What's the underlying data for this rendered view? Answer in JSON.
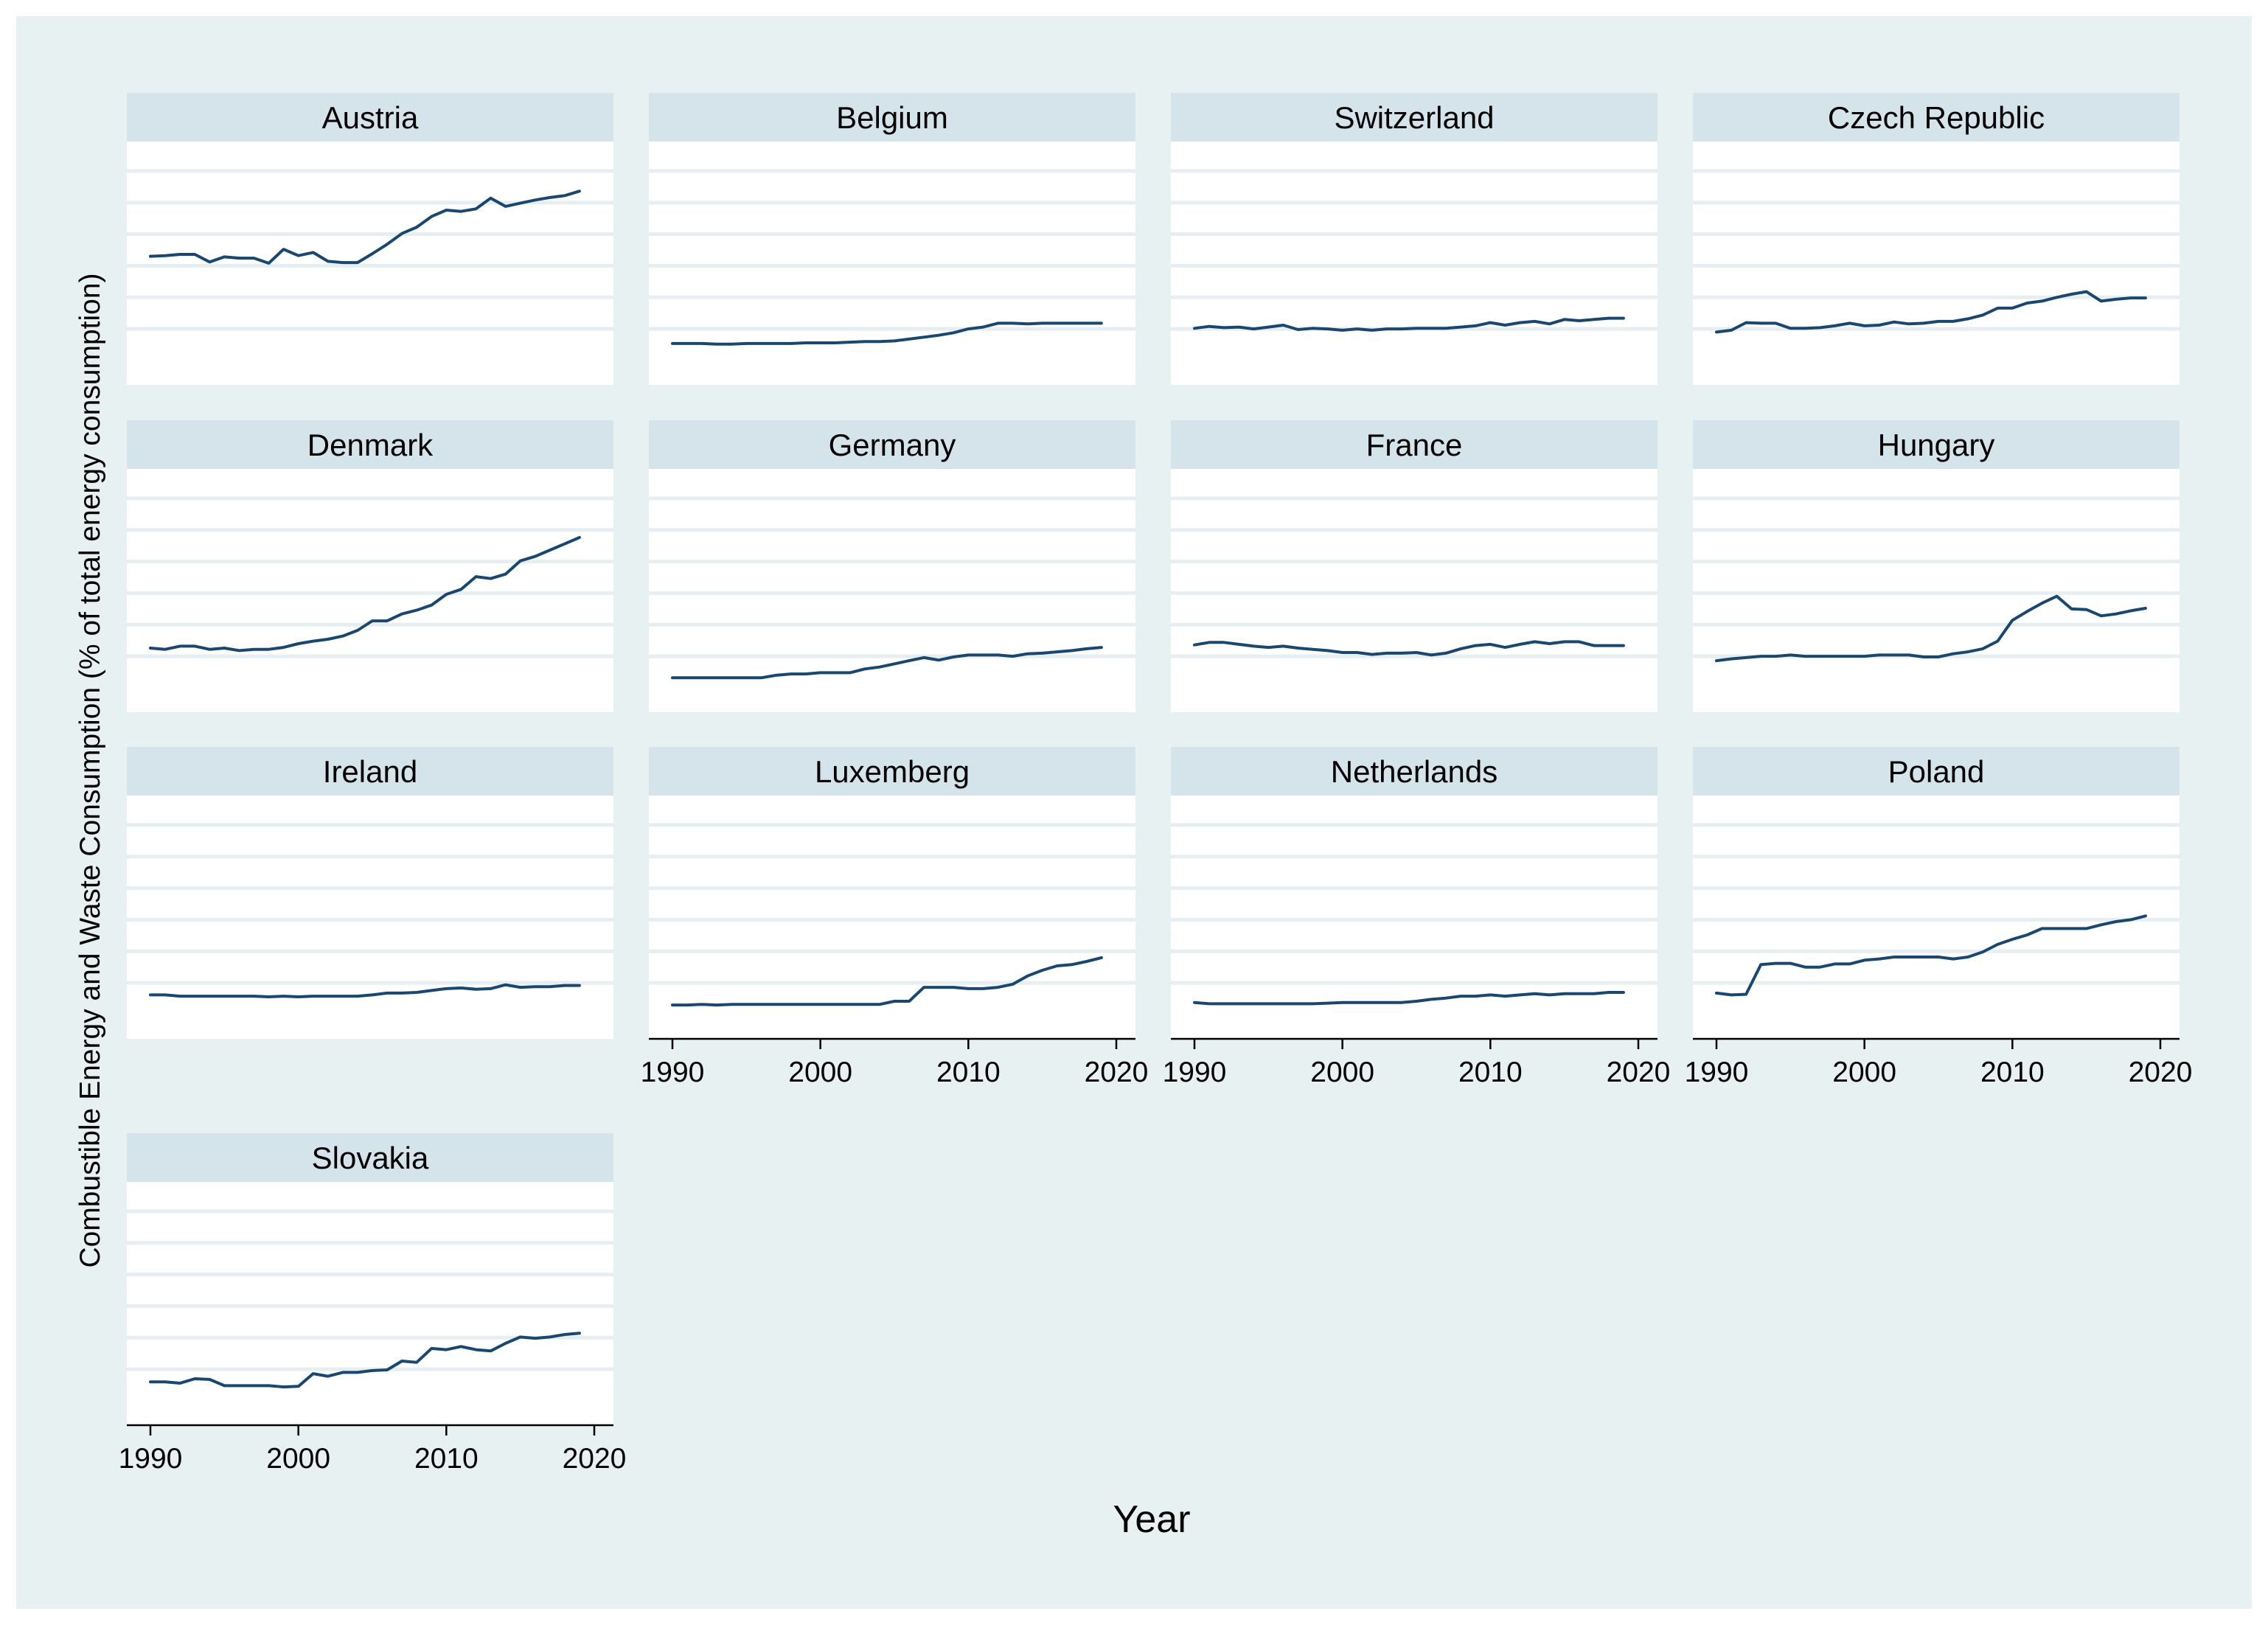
{
  "chart_data": {
    "type": "line",
    "layout": "small-multiples",
    "title": "",
    "xlabel": "Year",
    "ylabel": "Combustible Energy and Waste Consumption (% of total energy consumption)",
    "xlim": [
      1990,
      2020
    ],
    "ylim": [
      0,
      35
    ],
    "x_ticks": [
      1990,
      2000,
      2010,
      2020
    ],
    "x_tick_labels": [
      "1990",
      "2000",
      "2010",
      "2020"
    ],
    "y_gridlines": [
      5,
      10,
      15,
      20,
      25,
      30
    ],
    "y_tick_labels_shown": false,
    "grid": true,
    "x": [
      1990,
      1991,
      1992,
      1993,
      1994,
      1995,
      1996,
      1997,
      1998,
      1999,
      2000,
      2001,
      2002,
      2003,
      2004,
      2005,
      2006,
      2007,
      2008,
      2009,
      2010,
      2011,
      2012,
      2013,
      2014,
      2015,
      2016,
      2017,
      2018,
      2019
    ],
    "series": [
      {
        "name": "Austria",
        "values": [
          16.5,
          16.6,
          16.8,
          16.8,
          15.6,
          16.4,
          16.2,
          16.2,
          15.4,
          17.6,
          16.6,
          17.1,
          15.7,
          15.5,
          15.5,
          16.9,
          18.4,
          20.1,
          21.1,
          22.8,
          23.8,
          23.6,
          24.0,
          25.7,
          24.4,
          24.9,
          25.4,
          25.8,
          26.1,
          26.8
        ]
      },
      {
        "name": "Belgium",
        "values": [
          2.7,
          2.7,
          2.7,
          2.6,
          2.6,
          2.7,
          2.7,
          2.7,
          2.7,
          2.8,
          2.8,
          2.8,
          2.9,
          3.0,
          3.0,
          3.1,
          3.4,
          3.7,
          4.0,
          4.4,
          5.0,
          5.3,
          5.9,
          5.9,
          5.8,
          5.9,
          5.9,
          5.9,
          5.9,
          5.9
        ]
      },
      {
        "name": "Switzerland",
        "values": [
          5.1,
          5.4,
          5.2,
          5.3,
          5.0,
          5.3,
          5.6,
          4.9,
          5.1,
          5.0,
          4.8,
          5.0,
          4.8,
          5.0,
          5.0,
          5.1,
          5.1,
          5.1,
          5.3,
          5.5,
          6.0,
          5.6,
          6.0,
          6.2,
          5.8,
          6.5,
          6.3,
          6.5,
          6.7,
          6.7
        ]
      },
      {
        "name": "Czech Republic",
        "values": [
          4.5,
          4.8,
          6.0,
          5.9,
          5.9,
          5.1,
          5.1,
          5.2,
          5.5,
          5.9,
          5.5,
          5.6,
          6.1,
          5.8,
          5.9,
          6.2,
          6.2,
          6.6,
          7.2,
          8.3,
          8.3,
          9.1,
          9.4,
          10.0,
          10.5,
          10.9,
          9.4,
          9.7,
          9.9,
          9.9
        ]
      },
      {
        "name": "Denmark",
        "values": [
          6.3,
          6.1,
          6.6,
          6.6,
          6.1,
          6.3,
          5.9,
          6.1,
          6.1,
          6.4,
          7.0,
          7.4,
          7.7,
          8.2,
          9.1,
          10.6,
          10.6,
          11.7,
          12.3,
          13.1,
          14.8,
          15.6,
          17.6,
          17.3,
          18.0,
          20.1,
          20.8,
          21.8,
          22.8,
          23.8
        ]
      },
      {
        "name": "Germany",
        "values": [
          1.6,
          1.6,
          1.6,
          1.6,
          1.6,
          1.6,
          1.6,
          2.0,
          2.2,
          2.2,
          2.4,
          2.4,
          2.4,
          3.0,
          3.3,
          3.8,
          4.3,
          4.8,
          4.4,
          4.9,
          5.2,
          5.2,
          5.2,
          5.0,
          5.4,
          5.5,
          5.7,
          5.9,
          6.2,
          6.4
        ]
      },
      {
        "name": "France",
        "values": [
          6.8,
          7.2,
          7.2,
          6.9,
          6.6,
          6.4,
          6.6,
          6.3,
          6.1,
          5.9,
          5.6,
          5.6,
          5.3,
          5.5,
          5.5,
          5.6,
          5.2,
          5.5,
          6.2,
          6.7,
          6.9,
          6.4,
          6.9,
          7.3,
          7.0,
          7.3,
          7.3,
          6.7,
          6.7,
          6.7
        ]
      },
      {
        "name": "Hungary",
        "values": [
          4.3,
          4.6,
          4.8,
          5.0,
          5.0,
          5.2,
          5.0,
          5.0,
          5.0,
          5.0,
          5.0,
          5.2,
          5.2,
          5.2,
          4.9,
          4.9,
          5.4,
          5.7,
          6.2,
          7.4,
          10.7,
          12.1,
          13.4,
          14.5,
          12.5,
          12.4,
          11.4,
          11.7,
          12.2,
          12.6
        ]
      },
      {
        "name": "Ireland",
        "values": [
          3.1,
          3.1,
          2.9,
          2.9,
          2.9,
          2.9,
          2.9,
          2.9,
          2.8,
          2.9,
          2.8,
          2.9,
          2.9,
          2.9,
          2.9,
          3.1,
          3.4,
          3.4,
          3.5,
          3.8,
          4.1,
          4.2,
          4.0,
          4.1,
          4.7,
          4.3,
          4.4,
          4.4,
          4.6,
          4.6
        ]
      },
      {
        "name": "Luxemberg",
        "values": [
          1.5,
          1.5,
          1.6,
          1.5,
          1.6,
          1.6,
          1.6,
          1.6,
          1.6,
          1.6,
          1.6,
          1.6,
          1.6,
          1.6,
          1.6,
          2.1,
          2.1,
          4.3,
          4.3,
          4.3,
          4.1,
          4.1,
          4.3,
          4.8,
          6.1,
          7.0,
          7.7,
          7.9,
          8.4,
          9.0
        ]
      },
      {
        "name": "Netherlands",
        "values": [
          1.9,
          1.7,
          1.7,
          1.7,
          1.7,
          1.7,
          1.7,
          1.7,
          1.7,
          1.8,
          1.9,
          1.9,
          1.9,
          1.9,
          1.9,
          2.1,
          2.4,
          2.6,
          2.9,
          2.9,
          3.1,
          2.9,
          3.1,
          3.3,
          3.1,
          3.3,
          3.3,
          3.3,
          3.5,
          3.5
        ]
      },
      {
        "name": "Poland",
        "values": [
          3.4,
          3.1,
          3.2,
          7.9,
          8.1,
          8.1,
          7.5,
          7.5,
          8.0,
          8.0,
          8.6,
          8.8,
          9.1,
          9.1,
          9.1,
          9.1,
          8.8,
          9.1,
          9.9,
          11.1,
          11.9,
          12.6,
          13.6,
          13.6,
          13.6,
          13.6,
          14.2,
          14.7,
          15.0,
          15.6
        ]
      },
      {
        "name": "Slovakia",
        "values": [
          3.0,
          3.0,
          2.8,
          3.5,
          3.4,
          2.4,
          2.4,
          2.4,
          2.4,
          2.2,
          2.3,
          4.3,
          3.9,
          4.5,
          4.5,
          4.8,
          4.9,
          6.3,
          6.1,
          8.3,
          8.1,
          8.6,
          8.1,
          7.9,
          9.1,
          10.1,
          9.9,
          10.1,
          10.5,
          10.7
        ]
      }
    ]
  }
}
